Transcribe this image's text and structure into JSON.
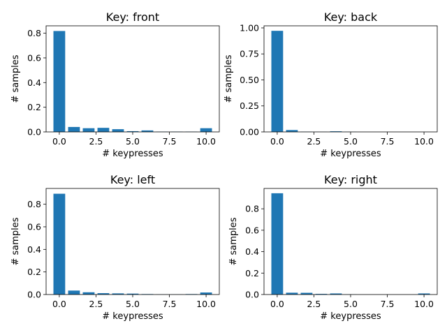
{
  "colors": {
    "bar": "#1f77b4",
    "axis": "#000000",
    "background": "#ffffff"
  },
  "chart_data": [
    {
      "type": "bar",
      "title": "Key: front",
      "xlabel": "# keypresses",
      "ylabel": "# samples",
      "x": [
        0,
        1,
        2,
        3,
        4,
        5,
        6,
        7,
        8,
        9,
        10
      ],
      "values": [
        0.818,
        0.04,
        0.03,
        0.033,
        0.022,
        0.006,
        0.012,
        0.002,
        0.002,
        0.002,
        0.03
      ],
      "xlim": [
        -0.9,
        10.9
      ],
      "ylim": [
        0,
        0.86
      ],
      "xticks": [
        0.0,
        2.5,
        5.0,
        7.5,
        10.0
      ],
      "xtick_labels": [
        "0.0",
        "2.5",
        "5.0",
        "7.5",
        "10.0"
      ],
      "yticks": [
        0.0,
        0.2,
        0.4,
        0.6,
        0.8
      ],
      "ytick_labels": [
        "0.0",
        "0.2",
        "0.4",
        "0.6",
        "0.8"
      ],
      "grid": false
    },
    {
      "type": "bar",
      "title": "Key: back",
      "xlabel": "# keypresses",
      "ylabel": "# samples",
      "x": [
        0,
        1,
        2,
        3,
        4,
        5,
        6,
        7,
        8,
        9,
        10
      ],
      "values": [
        0.972,
        0.018,
        0.002,
        0.001,
        0.006,
        0.001,
        0.0,
        0.0,
        0.0,
        0.0,
        0.0
      ],
      "xlim": [
        -0.9,
        10.9
      ],
      "ylim": [
        0,
        1.02
      ],
      "xticks": [
        0.0,
        2.5,
        5.0,
        7.5,
        10.0
      ],
      "xtick_labels": [
        "0.0",
        "2.5",
        "5.0",
        "7.5",
        "10.0"
      ],
      "yticks": [
        0.0,
        0.25,
        0.5,
        0.75,
        1.0
      ],
      "ytick_labels": [
        "0.00",
        "0.25",
        "0.50",
        "0.75",
        "1.00"
      ],
      "grid": false
    },
    {
      "type": "bar",
      "title": "Key: left",
      "xlabel": "# keypresses",
      "ylabel": "# samples",
      "x": [
        0,
        1,
        2,
        3,
        4,
        5,
        6,
        7,
        8,
        9,
        10
      ],
      "values": [
        0.893,
        0.035,
        0.02,
        0.012,
        0.01,
        0.008,
        0.004,
        0.001,
        0.001,
        0.004,
        0.018
      ],
      "xlim": [
        -0.9,
        10.9
      ],
      "ylim": [
        0,
        0.94
      ],
      "xticks": [
        0.0,
        2.5,
        5.0,
        7.5,
        10.0
      ],
      "xtick_labels": [
        "0.0",
        "2.5",
        "5.0",
        "7.5",
        "10.0"
      ],
      "yticks": [
        0.0,
        0.2,
        0.4,
        0.6,
        0.8
      ],
      "ytick_labels": [
        "0.0",
        "0.2",
        "0.4",
        "0.6",
        "0.8"
      ],
      "grid": false
    },
    {
      "type": "bar",
      "title": "Key: right",
      "xlabel": "# keypresses",
      "ylabel": "# samples",
      "x": [
        0,
        1,
        2,
        3,
        4,
        5,
        6,
        7,
        8,
        9,
        10
      ],
      "values": [
        0.945,
        0.017,
        0.016,
        0.006,
        0.01,
        0.001,
        0.0,
        0.0,
        0.0,
        0.0,
        0.01
      ],
      "xlim": [
        -0.9,
        10.9
      ],
      "ylim": [
        0,
        0.99
      ],
      "xticks": [
        0.0,
        2.5,
        5.0,
        7.5,
        10.0
      ],
      "xtick_labels": [
        "0.0",
        "2.5",
        "5.0",
        "7.5",
        "10.0"
      ],
      "yticks": [
        0.0,
        0.2,
        0.4,
        0.6,
        0.8
      ],
      "ytick_labels": [
        "0.0",
        "0.2",
        "0.4",
        "0.6",
        "0.8"
      ],
      "grid": false
    }
  ]
}
